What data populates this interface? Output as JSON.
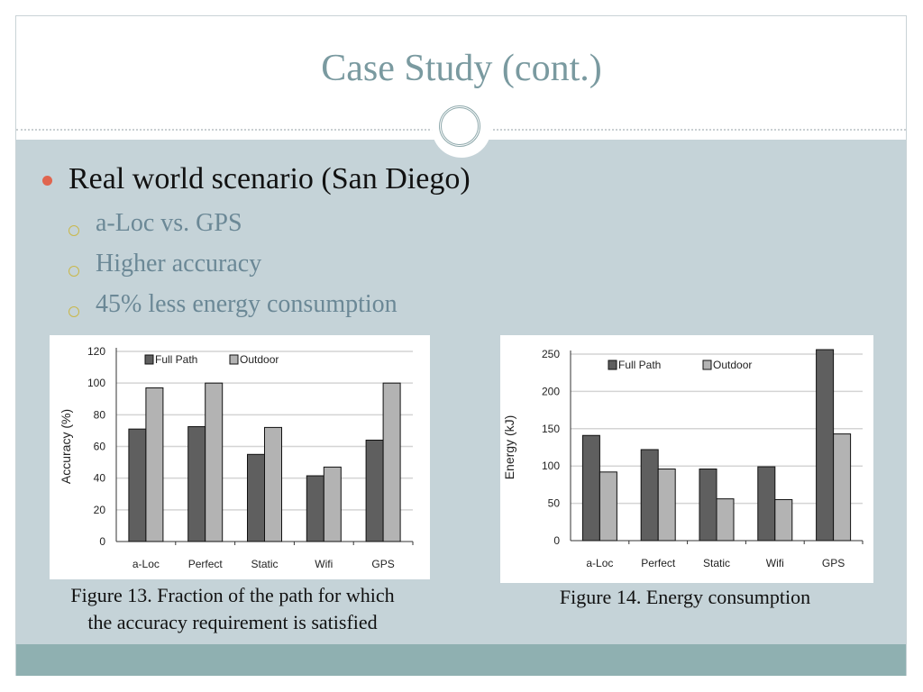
{
  "slide": {
    "title": "Case Study (cont.)",
    "bullet": "Real world scenario (San Diego)",
    "sub_bullets": [
      "a-Loc vs. GPS",
      "Higher accuracy",
      "45% less energy consumption"
    ],
    "caption_left": [
      "Figure 13. Fraction of the path for which",
      "the accuracy requirement is satisfied"
    ],
    "caption_right": "Figure 14. Energy consumption",
    "colors": {
      "title": "#7a9aa0",
      "content_bg": "#c5d3d8",
      "footer": "#8fb0b1",
      "bullet": "#e0654f"
    }
  },
  "chart_data": [
    {
      "type": "bar",
      "categories": [
        "a-Loc",
        "Perfect",
        "Static",
        "Wifi",
        "GPS"
      ],
      "series": [
        {
          "name": "Full Path",
          "values": [
            71,
            72.5,
            55,
            41.5,
            64
          ],
          "color": "#5f5f5f"
        },
        {
          "name": "Outdoor",
          "values": [
            97,
            100,
            72,
            47,
            100
          ],
          "color": "#b3b3b3"
        }
      ],
      "xlabel": "",
      "ylabel": "Accuracy (%)",
      "ylim": [
        0,
        120
      ],
      "yticks": [
        0,
        20,
        40,
        60,
        80,
        100,
        120
      ],
      "grid": true,
      "legend": "top"
    },
    {
      "type": "bar",
      "categories": [
        "a-Loc",
        "Perfect",
        "Static",
        "Wifi",
        "GPS"
      ],
      "series": [
        {
          "name": "Full Path",
          "values": [
            141,
            122,
            96,
            99,
            256
          ],
          "color": "#5f5f5f"
        },
        {
          "name": "Outdoor",
          "values": [
            92,
            96,
            56,
            55,
            143
          ],
          "color": "#b3b3b3"
        }
      ],
      "xlabel": "",
      "ylabel": "Energy (kJ)",
      "ylim": [
        0,
        250
      ],
      "yticks": [
        0,
        50,
        100,
        150,
        200,
        250
      ],
      "grid": true,
      "legend": "top"
    }
  ]
}
